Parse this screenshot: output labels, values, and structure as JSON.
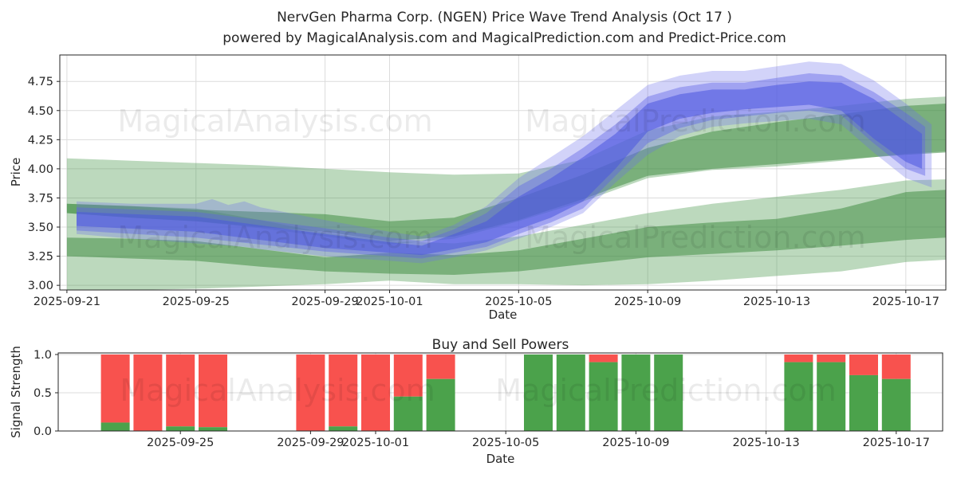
{
  "title": {
    "line1": "NervGen Pharma Corp. (NGEN) Price Wave Trend Analysis (Oct 17 )",
    "line2": "powered by MagicalAnalysis.com and MagicalPrediction.com and Predict-Price.com"
  },
  "watermark_texts": {
    "analysis": "MagicalAnalysis.com",
    "prediction": "MagicalPrediction.com"
  },
  "colors": {
    "grid": "#dcdcdc",
    "axis": "#262626",
    "tick_label": "#262626",
    "bar_buy_green": "#4ba24b",
    "bar_sell_red": "#f8524e",
    "band_green_light": "rgba(70,150,72,0.36)",
    "band_green_mid": "rgba(55,135,58,0.5)",
    "band_blue_light": "rgba(105,110,235,0.30)",
    "band_blue_mid": "rgba(92,98,230,0.42)",
    "band_blue_core": "rgba(75,85,222,0.55)"
  },
  "price_chart": {
    "ylabel": "Price",
    "xlabel": "Date",
    "yticks": [
      {
        "value": 3.0,
        "label": "3.00"
      },
      {
        "value": 3.25,
        "label": "3.25"
      },
      {
        "value": 3.5,
        "label": "3.50"
      },
      {
        "value": 3.75,
        "label": "3.75"
      },
      {
        "value": 4.0,
        "label": "4.00"
      },
      {
        "value": 4.25,
        "label": "4.25"
      },
      {
        "value": 4.5,
        "label": "4.50"
      },
      {
        "value": 4.75,
        "label": "4.75"
      }
    ],
    "xticks": [
      {
        "d": 0,
        "label": "2025-09-21"
      },
      {
        "d": 4,
        "label": "2025-09-25"
      },
      {
        "d": 8,
        "label": "2025-09-29"
      },
      {
        "d": 10,
        "label": "2025-10-01"
      },
      {
        "d": 14,
        "label": "2025-10-05"
      },
      {
        "d": 18,
        "label": "2025-10-09"
      },
      {
        "d": 22,
        "label": "2025-10-13"
      },
      {
        "d": 26,
        "label": "2025-10-17"
      }
    ]
  },
  "power_chart": {
    "title": "Buy and Sell Powers",
    "ylabel": "Signal Strength",
    "xlabel": "Date",
    "yticks": [
      {
        "value": 0.0,
        "label": "0.0"
      },
      {
        "value": 0.5,
        "label": "0.5"
      },
      {
        "value": 1.0,
        "label": "1.0"
      }
    ],
    "xticks": [
      {
        "d": 4,
        "label": "2025-09-25"
      },
      {
        "d": 8,
        "label": "2025-09-29"
      },
      {
        "d": 10,
        "label": "2025-10-01"
      },
      {
        "d": 14,
        "label": "2025-10-05"
      },
      {
        "d": 18,
        "label": "2025-10-09"
      },
      {
        "d": 22,
        "label": "2025-10-13"
      },
      {
        "d": 26,
        "label": "2025-10-17"
      }
    ]
  },
  "chart_data": [
    {
      "type": "area",
      "name": "price-wave-trend-bands",
      "title": "NervGen Pharma Corp. (NGEN) Price Wave Trend Analysis (Oct 17 )",
      "xlabel": "Date",
      "ylabel": "Price",
      "x_start_date": "2025-09-21",
      "x_unit": "days-since-2025-09-21",
      "xlim": [
        -0.22,
        27.24
      ],
      "ylim": [
        2.96,
        4.977
      ],
      "grid": true,
      "legend": "none",
      "series": [
        {
          "name": "green-band-lower-envelope",
          "color_key": "band_green_light",
          "points": [
            [
              0,
              3.7,
              2.96
            ],
            [
              2,
              3.68,
              2.96
            ],
            [
              4,
              3.66,
              2.97
            ],
            [
              6,
              3.56,
              2.99
            ],
            [
              8,
              3.45,
              3.01
            ],
            [
              10,
              3.38,
              3.04
            ],
            [
              12,
              3.36,
              3.01
            ],
            [
              14,
              3.42,
              3.01
            ],
            [
              16,
              3.52,
              3.0
            ],
            [
              18,
              3.62,
              3.01
            ],
            [
              20,
              3.7,
              3.04
            ],
            [
              22,
              3.76,
              3.08
            ],
            [
              24,
              3.82,
              3.12
            ],
            [
              26,
              3.9,
              3.2
            ],
            [
              27.24,
              3.91,
              3.22
            ]
          ]
        },
        {
          "name": "green-band-upper-envelope",
          "color_key": "band_green_light",
          "points": [
            [
              0,
              4.09,
              3.62
            ],
            [
              2,
              4.07,
              3.58
            ],
            [
              4,
              4.05,
              3.55
            ],
            [
              6,
              4.03,
              3.49
            ],
            [
              8,
              4.0,
              3.42
            ],
            [
              10,
              3.97,
              3.35
            ],
            [
              12,
              3.95,
              3.4
            ],
            [
              14,
              3.96,
              3.55
            ],
            [
              16,
              4.08,
              3.72
            ],
            [
              18,
              4.33,
              3.92
            ],
            [
              20,
              4.45,
              3.99
            ],
            [
              22,
              4.49,
              4.02
            ],
            [
              24,
              4.54,
              4.07
            ],
            [
              26,
              4.6,
              4.13
            ],
            [
              27.24,
              4.62,
              4.15
            ]
          ]
        },
        {
          "name": "green-band-lower-core",
          "color_key": "band_green_mid",
          "points": [
            [
              0,
              3.41,
              3.25
            ],
            [
              2,
              3.4,
              3.23
            ],
            [
              4,
              3.38,
              3.21
            ],
            [
              6,
              3.31,
              3.16
            ],
            [
              8,
              3.24,
              3.12
            ],
            [
              10,
              3.28,
              3.1
            ],
            [
              12,
              3.26,
              3.09
            ],
            [
              14,
              3.3,
              3.12
            ],
            [
              16,
              3.4,
              3.18
            ],
            [
              18,
              3.5,
              3.24
            ],
            [
              20,
              3.54,
              3.27
            ],
            [
              22,
              3.57,
              3.3
            ],
            [
              24,
              3.66,
              3.34
            ],
            [
              26,
              3.8,
              3.39
            ],
            [
              27.24,
              3.82,
              3.41
            ]
          ]
        },
        {
          "name": "green-band-upper-core",
          "color_key": "band_green_mid",
          "points": [
            [
              0,
              3.7,
              3.62
            ],
            [
              2,
              3.68,
              3.58
            ],
            [
              4,
              3.65,
              3.55
            ],
            [
              6,
              3.63,
              3.5
            ],
            [
              8,
              3.61,
              3.46
            ],
            [
              10,
              3.55,
              3.38
            ],
            [
              12,
              3.58,
              3.42
            ],
            [
              14,
              3.75,
              3.56
            ],
            [
              16,
              3.95,
              3.74
            ],
            [
              18,
              4.18,
              3.94
            ],
            [
              20,
              4.32,
              4.0
            ],
            [
              22,
              4.4,
              4.04
            ],
            [
              24,
              4.47,
              4.08
            ],
            [
              26,
              4.54,
              4.12
            ],
            [
              27.24,
              4.56,
              4.14
            ]
          ]
        },
        {
          "name": "blue-band-outer",
          "color_key": "band_blue_light",
          "points": [
            [
              0.3,
              3.72,
              3.44
            ],
            [
              2,
              3.7,
              3.4
            ],
            [
              4,
              3.7,
              3.36
            ],
            [
              4.5,
              3.74,
              3.35
            ],
            [
              5,
              3.69,
              3.34
            ],
            [
              5.5,
              3.72,
              3.33
            ],
            [
              6,
              3.67,
              3.31
            ],
            [
              8,
              3.56,
              3.25
            ],
            [
              10,
              3.46,
              3.21
            ],
            [
              11,
              3.42,
              3.19
            ],
            [
              12,
              3.52,
              3.24
            ],
            [
              13,
              3.68,
              3.3
            ],
            [
              14,
              3.92,
              3.4
            ],
            [
              15,
              4.1,
              3.5
            ],
            [
              16,
              4.28,
              3.62
            ],
            [
              17,
              4.5,
              3.88
            ],
            [
              18,
              4.72,
              4.12
            ],
            [
              19,
              4.8,
              4.28
            ],
            [
              20,
              4.84,
              4.36
            ],
            [
              21,
              4.84,
              4.39
            ],
            [
              22,
              4.88,
              4.41
            ],
            [
              23,
              4.92,
              4.43
            ],
            [
              24,
              4.9,
              4.38
            ],
            [
              25,
              4.76,
              4.14
            ],
            [
              26,
              4.56,
              3.92
            ],
            [
              26.8,
              4.38,
              3.84
            ]
          ]
        },
        {
          "name": "blue-band-middle",
          "color_key": "band_blue_mid",
          "points": [
            [
              0.3,
              3.67,
              3.47
            ],
            [
              4,
              3.63,
              3.41
            ],
            [
              8,
              3.49,
              3.29
            ],
            [
              10,
              3.41,
              3.25
            ],
            [
              11,
              3.38,
              3.23
            ],
            [
              12,
              3.48,
              3.28
            ],
            [
              13,
              3.62,
              3.33
            ],
            [
              14,
              3.85,
              3.44
            ],
            [
              15,
              4.0,
              3.54
            ],
            [
              16,
              4.18,
              3.66
            ],
            [
              17,
              4.38,
              3.94
            ],
            [
              18,
              4.62,
              4.22
            ],
            [
              19,
              4.7,
              4.35
            ],
            [
              20,
              4.74,
              4.42
            ],
            [
              21,
              4.74,
              4.45
            ],
            [
              22,
              4.78,
              4.48
            ],
            [
              23,
              4.82,
              4.5
            ],
            [
              24,
              4.8,
              4.46
            ],
            [
              25,
              4.66,
              4.22
            ],
            [
              26,
              4.48,
              4.0
            ],
            [
              26.6,
              4.36,
              3.94
            ]
          ]
        },
        {
          "name": "blue-band-core",
          "color_key": "band_blue_core",
          "points": [
            [
              0.3,
              3.63,
              3.51
            ],
            [
              4,
              3.59,
              3.46
            ],
            [
              8,
              3.44,
              3.32
            ],
            [
              10,
              3.37,
              3.28
            ],
            [
              11,
              3.34,
              3.26
            ],
            [
              12,
              3.44,
              3.31
            ],
            [
              13,
              3.55,
              3.37
            ],
            [
              14,
              3.76,
              3.48
            ],
            [
              15,
              3.92,
              3.58
            ],
            [
              16,
              4.1,
              3.72
            ],
            [
              17,
              4.3,
              4.0
            ],
            [
              18,
              4.56,
              4.32
            ],
            [
              19,
              4.64,
              4.43
            ],
            [
              20,
              4.68,
              4.48
            ],
            [
              21,
              4.68,
              4.51
            ],
            [
              22,
              4.72,
              4.53
            ],
            [
              23,
              4.75,
              4.55
            ],
            [
              24,
              4.74,
              4.5
            ],
            [
              25,
              4.6,
              4.26
            ],
            [
              26,
              4.4,
              4.06
            ],
            [
              26.5,
              4.3,
              4.0
            ]
          ]
        }
      ]
    },
    {
      "type": "bar",
      "name": "buy-and-sell-powers",
      "title": "Buy and Sell Powers",
      "xlabel": "Date",
      "ylabel": "Signal Strength",
      "stacked": true,
      "ylim": [
        0,
        1.021
      ],
      "grid": true,
      "bar_series_order": [
        "buy",
        "sell"
      ],
      "bars": [
        {
          "date": "2025-09-23",
          "buy": 0.11,
          "sell": 0.89
        },
        {
          "date": "2025-09-24",
          "buy": 0.0,
          "sell": 1.0
        },
        {
          "date": "2025-09-25",
          "buy": 0.06,
          "sell": 0.94
        },
        {
          "date": "2025-09-26",
          "buy": 0.05,
          "sell": 0.95
        },
        {
          "date": "2025-09-29",
          "buy": 0.0,
          "sell": 1.0
        },
        {
          "date": "2025-09-30",
          "buy": 0.06,
          "sell": 0.94
        },
        {
          "date": "2025-10-01",
          "buy": 0.0,
          "sell": 1.0
        },
        {
          "date": "2025-10-02",
          "buy": 0.45,
          "sell": 0.55
        },
        {
          "date": "2025-10-03",
          "buy": 0.68,
          "sell": 0.32
        },
        {
          "date": "2025-10-06",
          "buy": 1.0,
          "sell": 0.0
        },
        {
          "date": "2025-10-07",
          "buy": 1.0,
          "sell": 0.0
        },
        {
          "date": "2025-10-08",
          "buy": 0.9,
          "sell": 0.1
        },
        {
          "date": "2025-10-09",
          "buy": 1.0,
          "sell": 0.0
        },
        {
          "date": "2025-10-10",
          "buy": 1.0,
          "sell": 0.0
        },
        {
          "date": "2025-10-14",
          "buy": 0.9,
          "sell": 0.1
        },
        {
          "date": "2025-10-15",
          "buy": 0.9,
          "sell": 0.1
        },
        {
          "date": "2025-10-16",
          "buy": 0.73,
          "sell": 0.27
        },
        {
          "date": "2025-10-17",
          "buy": 0.68,
          "sell": 0.32
        }
      ]
    }
  ]
}
